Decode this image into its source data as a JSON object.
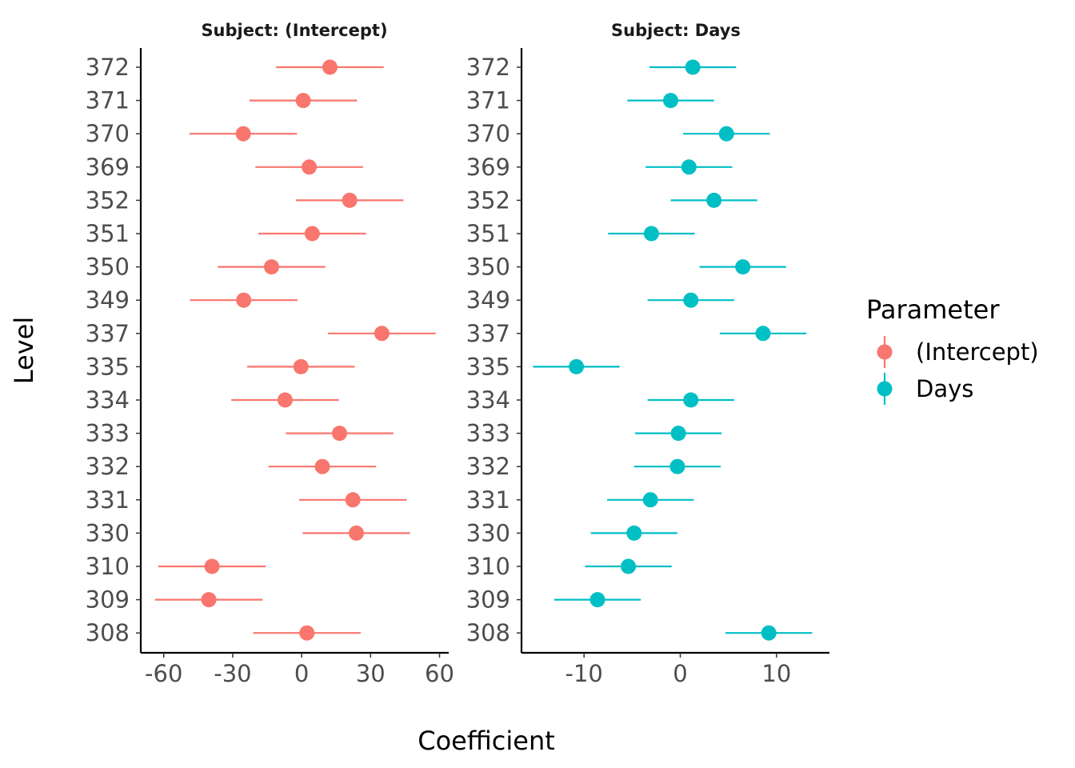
{
  "chart_data": {
    "type": "scatter",
    "subtype": "coefficient-plot with confidence intervals, faceted",
    "xlabel": "Coefficient",
    "ylabel": "Level",
    "levels": [
      "308",
      "309",
      "310",
      "330",
      "331",
      "332",
      "333",
      "334",
      "335",
      "337",
      "349",
      "350",
      "351",
      "352",
      "369",
      "370",
      "371",
      "372"
    ],
    "legend": {
      "title": "Parameter",
      "position": "right",
      "entries": [
        {
          "label": "(Intercept)",
          "color": "#F8766D"
        },
        {
          "label": "Days",
          "color": "#00BFC4"
        }
      ]
    },
    "panels": [
      {
        "title": "Subject: (Intercept)",
        "series": "(Intercept)",
        "color": "#F8766D",
        "xlim": [
          -70,
          64
        ],
        "xticks": [
          -60,
          -30,
          0,
          30,
          60
        ],
        "xtick_labels": [
          "-60",
          "-30",
          "0",
          "30",
          "60"
        ],
        "estimates": [
          2.3,
          -40.4,
          -39.0,
          23.8,
          22.3,
          9.0,
          16.5,
          -7.2,
          -0.3,
          34.9,
          -25.2,
          -13.1,
          4.6,
          20.9,
          3.3,
          -25.4,
          0.7,
          12.3
        ],
        "lower": [
          -21.1,
          -63.8,
          -62.4,
          0.4,
          -1.1,
          -14.4,
          -6.9,
          -30.6,
          -23.7,
          11.5,
          -48.6,
          -36.5,
          -18.8,
          -2.5,
          -20.1,
          -48.8,
          -22.7,
          -11.1
        ],
        "upper": [
          25.7,
          -17.0,
          -15.6,
          47.2,
          45.7,
          32.4,
          39.9,
          16.2,
          23.1,
          58.3,
          -1.8,
          10.3,
          28.0,
          44.3,
          26.7,
          -2.0,
          24.1,
          35.7
        ]
      },
      {
        "title": "Subject: Days",
        "series": "Days",
        "color": "#00BFC4",
        "xlim": [
          -16.5,
          15.5
        ],
        "xticks": [
          -10,
          0,
          10
        ],
        "xtick_labels": [
          "-10",
          "0",
          "10"
        ],
        "estimates": [
          9.2,
          -8.6,
          -5.4,
          -4.8,
          -3.1,
          -0.3,
          -0.2,
          1.1,
          -10.8,
          8.6,
          1.1,
          6.5,
          -3.0,
          3.5,
          0.9,
          4.8,
          -1.0,
          1.3
        ],
        "lower": [
          4.7,
          -13.1,
          -9.9,
          -9.3,
          -7.6,
          -4.8,
          -4.7,
          -3.4,
          -15.3,
          4.1,
          -3.4,
          2.0,
          -7.5,
          -1.0,
          -3.6,
          0.3,
          -5.5,
          -3.2
        ],
        "upper": [
          13.7,
          -4.1,
          -0.9,
          -0.3,
          1.4,
          4.2,
          4.3,
          5.6,
          -6.3,
          13.1,
          5.6,
          11.0,
          1.5,
          8.0,
          5.4,
          9.3,
          3.5,
          5.8
        ]
      }
    ]
  }
}
